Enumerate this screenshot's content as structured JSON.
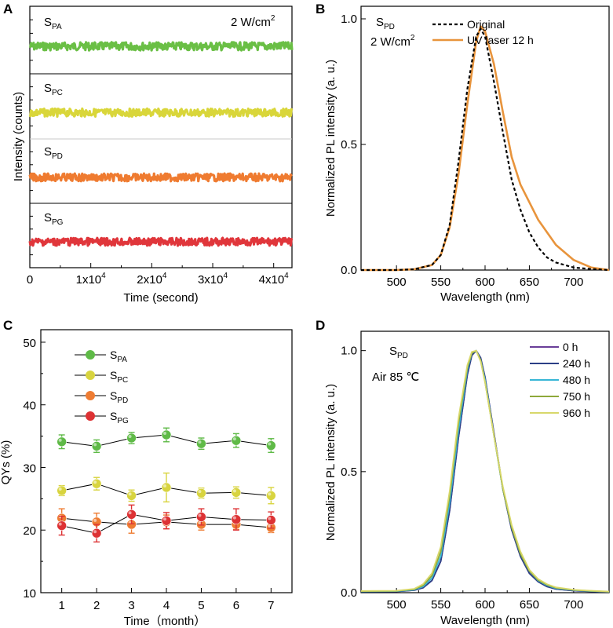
{
  "panel_labels": [
    "A",
    "B",
    "C",
    "D"
  ],
  "chart_data": [
    {
      "panel": "A",
      "type": "line",
      "xlabel": "Time (second)",
      "ylabel": "Intensity (counts)",
      "annotation": "2 W/cm",
      "annotation_sup": "2",
      "x_ticks": [
        "0",
        "1x10",
        "2x10",
        "3x10",
        "4x10"
      ],
      "x_tick_sup": "4",
      "x_tick_values": [
        0,
        10000,
        20000,
        30000,
        40000
      ],
      "xlim": [
        0,
        43000
      ],
      "series": [
        {
          "label": "S",
          "label_sub": "PA",
          "color": "#6abf45",
          "level": 0.5,
          "noise": 0.06
        },
        {
          "label": "S",
          "label_sub": "PC",
          "color": "#d9d63a",
          "level": 0.5,
          "noise": 0.06
        },
        {
          "label": "S",
          "label_sub": "PD",
          "color": "#ef7b30",
          "level": 0.5,
          "noise": 0.06
        },
        {
          "label": "S",
          "label_sub": "PG",
          "color": "#e0363b",
          "level": 0.5,
          "noise": 0.06
        }
      ]
    },
    {
      "panel": "B",
      "type": "line",
      "xlabel": "Wavelength (nm)",
      "ylabel": "Normalized PL intensity (a. u.)",
      "annotation_main": "S",
      "annotation_sub": "PD",
      "annotation2": "2 W/cm",
      "annotation2_sup": "2",
      "xlim": [
        460,
        740
      ],
      "ylim": [
        0,
        1.05
      ],
      "x_ticks": [
        500,
        550,
        600,
        650,
        700
      ],
      "y_ticks": [
        "0.0",
        "0.5",
        "1.0"
      ],
      "y_tick_values": [
        0,
        0.5,
        1.0
      ],
      "series": [
        {
          "name": "Original",
          "color": "#000000",
          "dashed": true,
          "x": [
            460,
            500,
            520,
            540,
            550,
            560,
            570,
            580,
            590,
            595,
            600,
            610,
            620,
            630,
            640,
            650,
            660,
            670,
            680,
            700,
            720,
            740
          ],
          "y": [
            0,
            0,
            0.003,
            0.02,
            0.06,
            0.18,
            0.43,
            0.72,
            0.93,
            0.96,
            0.93,
            0.75,
            0.55,
            0.36,
            0.24,
            0.15,
            0.09,
            0.05,
            0.03,
            0.01,
            0.004,
            0
          ]
        },
        {
          "name": "UV laser 12 h",
          "color": "#e8943c",
          "dashed": false,
          "x": [
            460,
            500,
            520,
            540,
            550,
            560,
            570,
            580,
            590,
            595,
            600,
            610,
            620,
            630,
            640,
            650,
            660,
            670,
            680,
            700,
            720,
            740
          ],
          "y": [
            0,
            0,
            0.003,
            0.02,
            0.06,
            0.17,
            0.38,
            0.66,
            0.91,
            0.97,
            0.95,
            0.82,
            0.63,
            0.45,
            0.34,
            0.27,
            0.2,
            0.15,
            0.1,
            0.04,
            0.01,
            0
          ]
        }
      ]
    },
    {
      "panel": "C",
      "type": "scatter",
      "xlabel": "Time（month）",
      "ylabel": "QYs (%)",
      "xlim": [
        0.4,
        7.6
      ],
      "ylim": [
        10,
        52
      ],
      "x_ticks": [
        1,
        2,
        3,
        4,
        5,
        6,
        7
      ],
      "y_ticks": [
        10,
        20,
        30,
        40,
        50
      ],
      "x": [
        1,
        2,
        3,
        4,
        5,
        6,
        7
      ],
      "series": [
        {
          "label": "S",
          "label_sub": "PA",
          "color": "#5fba47",
          "values": [
            34.1,
            33.4,
            34.7,
            35.2,
            33.8,
            34.3,
            33.5
          ],
          "errors": [
            1.1,
            1.0,
            0.9,
            1.1,
            0.9,
            1.1,
            1.1
          ]
        },
        {
          "label": "S",
          "label_sub": "PC",
          "color": "#d8d43f",
          "values": [
            26.3,
            27.4,
            25.5,
            26.8,
            25.9,
            26.0,
            25.5
          ],
          "errors": [
            0.8,
            1.0,
            0.9,
            2.3,
            0.8,
            0.9,
            1.3
          ]
        },
        {
          "label": "S",
          "label_sub": "PD",
          "color": "#ee7c33",
          "values": [
            21.9,
            21.3,
            20.9,
            21.3,
            20.9,
            20.9,
            20.4
          ],
          "errors": [
            1.5,
            1.4,
            1.4,
            1.1,
            0.9,
            0.8,
            0.8
          ]
        },
        {
          "label": "S",
          "label_sub": "PG",
          "color": "#dd3234",
          "values": [
            20.7,
            19.5,
            22.5,
            21.5,
            22.1,
            21.7,
            21.6
          ],
          "errors": [
            1.5,
            1.4,
            1.5,
            1.3,
            1.3,
            1.7,
            1.3
          ]
        }
      ]
    },
    {
      "panel": "D",
      "type": "line",
      "xlabel": "Wavelength (nm)",
      "ylabel": "Normalized PL intensity (a. u.)",
      "annotation_main": "S",
      "annotation_sub": "PD",
      "annotation2": "Air 85 ℃",
      "xlim": [
        460,
        740
      ],
      "ylim": [
        0,
        1.08
      ],
      "x_ticks": [
        500,
        550,
        600,
        650,
        700
      ],
      "y_ticks": [
        "0.0",
        "0.5",
        "1.0"
      ],
      "y_tick_values": [
        0,
        0.5,
        1.0
      ],
      "x": [
        460,
        500,
        520,
        530,
        540,
        550,
        560,
        570,
        580,
        585,
        590,
        595,
        600,
        610,
        620,
        630,
        640,
        650,
        660,
        670,
        680,
        700,
        720,
        740
      ],
      "series": [
        {
          "name": "0 h",
          "color": "#6a3e99",
          "y": [
            0.005,
            0.005,
            0.01,
            0.02,
            0.05,
            0.13,
            0.34,
            0.64,
            0.9,
            0.98,
            1.0,
            0.97,
            0.89,
            0.66,
            0.43,
            0.26,
            0.15,
            0.08,
            0.045,
            0.025,
            0.015,
            0.008,
            0.005,
            0.003
          ]
        },
        {
          "name": "240 h",
          "color": "#2b3f86",
          "y": [
            0.005,
            0.005,
            0.01,
            0.02,
            0.05,
            0.13,
            0.34,
            0.64,
            0.9,
            0.98,
            1.0,
            0.97,
            0.89,
            0.66,
            0.43,
            0.26,
            0.15,
            0.08,
            0.045,
            0.025,
            0.015,
            0.008,
            0.005,
            0.003
          ]
        },
        {
          "name": "480 h",
          "color": "#38b6d6",
          "y": [
            0.005,
            0.006,
            0.012,
            0.025,
            0.06,
            0.15,
            0.37,
            0.67,
            0.92,
            0.99,
            1.0,
            0.96,
            0.88,
            0.65,
            0.43,
            0.27,
            0.16,
            0.09,
            0.05,
            0.03,
            0.018,
            0.01,
            0.006,
            0.004
          ]
        },
        {
          "name": "750 h",
          "color": "#8ea83a",
          "y": [
            0.006,
            0.007,
            0.014,
            0.03,
            0.07,
            0.17,
            0.4,
            0.7,
            0.93,
            0.99,
            1.0,
            0.96,
            0.87,
            0.65,
            0.43,
            0.27,
            0.16,
            0.09,
            0.052,
            0.032,
            0.02,
            0.011,
            0.007,
            0.004
          ]
        },
        {
          "name": "960 h",
          "color": "#d8d86a",
          "y": [
            0.007,
            0.008,
            0.016,
            0.035,
            0.08,
            0.19,
            0.42,
            0.72,
            0.94,
            0.995,
            1.0,
            0.955,
            0.87,
            0.65,
            0.44,
            0.28,
            0.17,
            0.095,
            0.056,
            0.035,
            0.022,
            0.012,
            0.008,
            0.005
          ]
        }
      ]
    }
  ]
}
